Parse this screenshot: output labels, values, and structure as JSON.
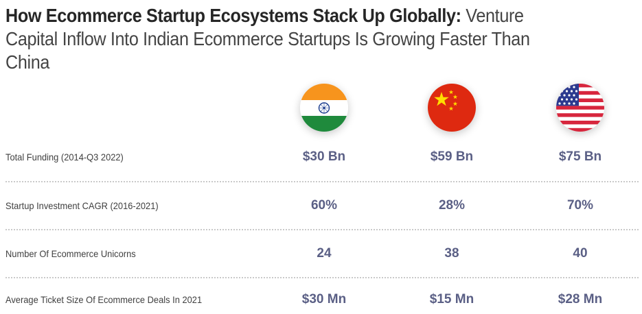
{
  "title": {
    "bold": "How Ecommerce Startup Ecosystems Stack Up Globally:",
    "light": " Venture Capital Inflow Into Indian Ecommerce Startups Is Growing Faster Than China"
  },
  "chart_data": {
    "type": "table",
    "columns": [
      {
        "country": "India",
        "icon": "india-flag-icon"
      },
      {
        "country": "China",
        "icon": "china-flag-icon"
      },
      {
        "country": "USA",
        "icon": "usa-flag-icon"
      }
    ],
    "rows": [
      {
        "label": "Total Funding (2014-Q3 2022)",
        "values": [
          "$30 Bn",
          "$59 Bn",
          "$75 Bn"
        ]
      },
      {
        "label": "Startup Investment CAGR (2016-2021)",
        "values": [
          "60%",
          "28%",
          "70%"
        ]
      },
      {
        "label": "Number Of Ecommerce Unicorns",
        "values": [
          "24",
          "38",
          "40"
        ]
      },
      {
        "label": "Average Ticket Size Of Ecommerce Deals In 2021",
        "values": [
          "$30 Mn",
          "$15 Mn",
          "$28 Mn"
        ]
      }
    ],
    "numeric": {
      "total_funding_bn_usd": [
        30,
        59,
        75
      ],
      "startup_investment_cagr_pct": [
        60,
        28,
        70
      ],
      "ecommerce_unicorns": [
        24,
        38,
        40
      ],
      "avg_ticket_size_mn_usd": [
        30,
        15,
        28
      ]
    }
  },
  "colors": {
    "value_text": "#5a5f85",
    "label_text": "#3f3f3f",
    "divider": "#c9c9c9"
  }
}
